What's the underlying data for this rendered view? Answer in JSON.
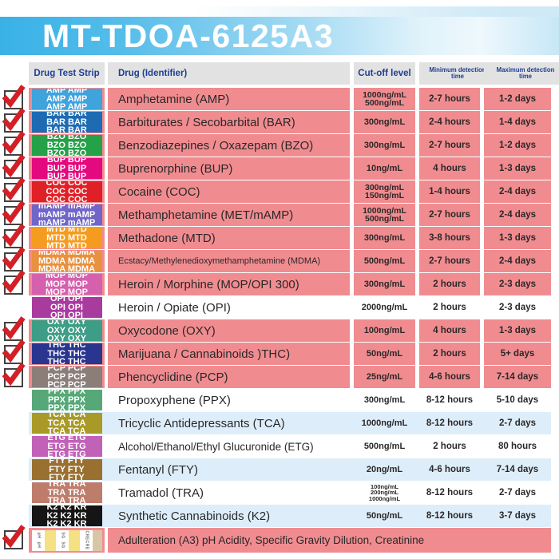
{
  "title": "MT-TDOA-6125A3",
  "header": {
    "strip": "Drug Test Strip",
    "drug": "Drug (Identifier)",
    "cutoff": "Cut-off level",
    "min": "Minimum detection time",
    "max": "Maximum detection time"
  },
  "colors": {
    "row_pink": "#f08c90",
    "row_blue": "#ddeefa",
    "header_bg": "#e2e2e2",
    "header_text": "#1d3e94",
    "check_red": "#d31f26",
    "banner_blue": "#39b1e7",
    "text_dark": "#2b2728",
    "pad_yellow": "#f5e083",
    "pad_tan": "#d9c6a6"
  },
  "rows": [
    {
      "code": "AMP",
      "strip_text": "AMP AMP",
      "strip_color": "#3fa3dc",
      "name": "Amphetamine (AMP)",
      "cutoffs": [
        "1000ng/mL",
        "500ng/mL"
      ],
      "min": "2-7 hours",
      "max": "1-2 days",
      "checked": true,
      "bg": "pink"
    },
    {
      "code": "BAR",
      "strip_text": "BAR BAR",
      "strip_color": "#1e6bb4",
      "name": "Barbiturates / Secobarbital (BAR)",
      "cutoffs": [
        "300ng/mL"
      ],
      "min": "2-4 hours",
      "max": "1-4 days",
      "checked": true,
      "bg": "pink"
    },
    {
      "code": "BZO",
      "strip_text": "BZO BZO",
      "strip_color": "#25a148",
      "name": "Benzodiazepines / Oxazepam (BZO)",
      "cutoffs": [
        "300ng/mL"
      ],
      "min": "2-7 hours",
      "max": "1-2 days",
      "checked": true,
      "bg": "pink"
    },
    {
      "code": "BUP",
      "strip_text": "BUP BUP",
      "strip_color": "#e5097f",
      "name": "Buprenorphine (BUP)",
      "cutoffs": [
        "10ng/mL"
      ],
      "min": "4 hours",
      "max": "1-3 days",
      "checked": true,
      "bg": "pink"
    },
    {
      "code": "COC",
      "strip_text": "COC COC",
      "strip_color": "#e02027",
      "name": "Cocaine (COC)",
      "cutoffs": [
        "300ng/mL",
        "150ng/mL"
      ],
      "min": "1-4 hours",
      "max": "2-4 days",
      "checked": true,
      "bg": "pink"
    },
    {
      "code": "mAMP",
      "strip_text": "mAMP mAMP",
      "strip_color": "#7165c8",
      "name": "Methamphetamine (MET/mAMP)",
      "cutoffs": [
        "1000ng/mL",
        "500ng/mL"
      ],
      "min": "2-7 hours",
      "max": "2-4 days",
      "checked": true,
      "bg": "pink"
    },
    {
      "code": "MTD",
      "strip_text": "MTD MTD",
      "strip_color": "#f59c20",
      "name": "Methadone (MTD)",
      "cutoffs": [
        "300ng/mL"
      ],
      "min": "3-8 hours",
      "max": "1-3 days",
      "checked": true,
      "bg": "pink"
    },
    {
      "code": "MDMA",
      "strip_text": "MDMA MDMA",
      "strip_color": "#e8913f",
      "name": "Ecstacy/Methylenedioxymethamphetamine (MDMA)",
      "cutoffs": [
        "500ng/mL"
      ],
      "min": "2-7 hours",
      "max": "2-4 days",
      "checked": true,
      "bg": "pink",
      "name_size": "sm"
    },
    {
      "code": "MOP",
      "strip_text": "MOP MOP",
      "strip_color": "#d560ae",
      "name": "Heroin / Morphine (MOP/OPI 300)",
      "cutoffs": [
        "300ng/mL"
      ],
      "min": "2 hours",
      "max": "2-3 days",
      "checked": true,
      "bg": "pink"
    },
    {
      "code": "OPI",
      "strip_text": "OPI OPI",
      "strip_color": "#a93a9e",
      "name": "Heroin / Opiate (OPI)",
      "cutoffs": [
        "2000ng/mL"
      ],
      "min": "2 hours",
      "max": "2-3 days",
      "checked": false,
      "bg": "white"
    },
    {
      "code": "OXY",
      "strip_text": "OXY OXY",
      "strip_color": "#3e9d86",
      "name": "Oxycodone (OXY)",
      "cutoffs": [
        "100ng/mL"
      ],
      "min": "4 hours",
      "max": "1-3 days",
      "checked": true,
      "bg": "pink"
    },
    {
      "code": "THC",
      "strip_text": "THC THC",
      "strip_color": "#2a3590",
      "name": "Marijuana / Cannabinoids )THC)",
      "cutoffs": [
        "50ng/mL"
      ],
      "min": "2 hours",
      "max": "5+ days",
      "checked": true,
      "bg": "pink"
    },
    {
      "code": "PCP",
      "strip_text": "PCP PCP",
      "strip_color": "#8b7e79",
      "name": "Phencyclidine (PCP)",
      "cutoffs": [
        "25ng/mL"
      ],
      "min": "4-6 hours",
      "max": "7-14 days",
      "checked": true,
      "bg": "pink"
    },
    {
      "code": "PPX",
      "strip_text": "PPX PPX",
      "strip_color": "#57a878",
      "name": "Propoxyphene (PPX)",
      "cutoffs": [
        "300ng/mL"
      ],
      "min": "8-12 hours",
      "max": "5-10 days",
      "checked": false,
      "bg": "white"
    },
    {
      "code": "TCA",
      "strip_text": "TCA TCA",
      "strip_color": "#a99a27",
      "name": "Tricyclic Antidepressants (TCA)",
      "cutoffs": [
        "1000ng/mL"
      ],
      "min": "8-12 hours",
      "max": "2-7 days",
      "checked": false,
      "bg": "blue"
    },
    {
      "code": "ETG",
      "strip_text": "ETG ETG",
      "strip_color": "#c161b7",
      "name": "Alcohol/Ethanol/Ethyl Glucuronide (ETG)",
      "cutoffs": [
        "500ng/mL"
      ],
      "min": "2 hours",
      "max": "80 hours",
      "checked": false,
      "bg": "white",
      "name_size": "md"
    },
    {
      "code": "FTY",
      "strip_text": "FTY FTY",
      "strip_color": "#9a7031",
      "name": "Fentanyl (FTY)",
      "cutoffs": [
        "20ng/mL"
      ],
      "min": "4-6 hours",
      "max": "7-14 days",
      "checked": false,
      "bg": "blue"
    },
    {
      "code": "TRA",
      "strip_text": "TRA TRA",
      "strip_color": "#be7c6b",
      "name": "Tramadol (TRA)",
      "cutoffs": [
        "100ng/mL",
        "200ng/mL",
        "1000ng/mL"
      ],
      "min": "8-12 hours",
      "max": "2-7 days",
      "checked": false,
      "bg": "white"
    },
    {
      "code": "K2",
      "strip_text": "K2 K2 KR",
      "strip_color": "#151515",
      "name": "Synthetic Cannabinoids (K2)",
      "cutoffs": [
        "50ng/mL"
      ],
      "min": "8-12 hours",
      "max": "3-7 days",
      "checked": false,
      "bg": "blue"
    },
    {
      "code": "A3",
      "special": "adulteration",
      "pads": [
        "pH",
        "SG",
        "CRE"
      ],
      "name": "Adulteration (A3) pH Acidity, Specific Gravity Dilution, Creatinine",
      "cutoffs": [],
      "min": "",
      "max": "",
      "checked": true,
      "bg": "pink",
      "name_size": "md"
    }
  ]
}
